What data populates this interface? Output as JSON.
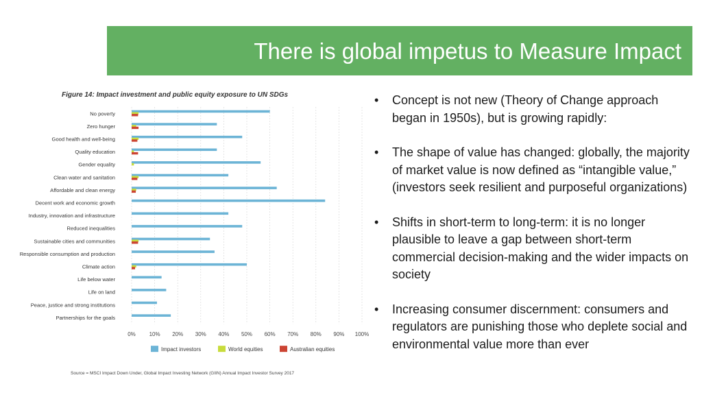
{
  "slide": {
    "title": "There is global impetus to Measure Impact",
    "bullets": [
      "Concept is not new (Theory of Change approach began in 1950s), but is growing rapidly:",
      "The shape of value has changed: globally, the majority of market value is now defined as “intangible value,” (investors seek resilient and purposeful organizations)",
      "Shifts in short-term to long-term: it is no longer plausible to leave a gap between short-term commercial decision-making and the wider impacts on society",
      "Increasing consumer discernment: consumers and regulators are punishing those who deplete social and environmental value more than ever"
    ],
    "bullet_glyph": "•"
  },
  "figure": {
    "source": "Source = MSCI Impact Down Under, Global Impact Investing Network (GIIN) Annual Impact Investor Survey 2017"
  },
  "chart_data": {
    "type": "bar",
    "orientation": "horizontal",
    "title": "Figure 14: Impact investment and public equity exposure to UN SDGs",
    "categories": [
      "No poverty",
      "Zero hunger",
      "Good health and well-being",
      "Quality education",
      "Gender equality",
      "Clean water and sanitation",
      "Affordable and clean energy",
      "Decent work and economic growth",
      "Industry, innovation and infrastructure",
      "Reduced inequalities",
      "Sustainable cities and communities",
      "Responsible consumption and production",
      "Climate action",
      "Life below water",
      "Life on land",
      "Peace, justice and strong institutions",
      "Partnerships for the goals"
    ],
    "series": [
      {
        "name": "Impact investors",
        "color": "#6cb4d6",
        "values": [
          60,
          37,
          48,
          37,
          56,
          42,
          63,
          84,
          42,
          48,
          34,
          36,
          50,
          13,
          15,
          11,
          17
        ]
      },
      {
        "name": "World equities",
        "color": "#c8dc3c",
        "values": [
          3,
          2,
          3,
          1,
          1,
          3,
          2,
          0,
          0,
          0,
          3,
          0,
          2,
          0,
          0,
          0,
          0
        ]
      },
      {
        "name": "Australian equities",
        "color": "#cc4433",
        "values": [
          2.8,
          3,
          2.5,
          2.8,
          0,
          2.5,
          1.8,
          0,
          0,
          0,
          2.8,
          0,
          1.5,
          0,
          0,
          0,
          0
        ]
      }
    ],
    "xlim": [
      0,
      100
    ],
    "ticks": [
      0,
      10,
      20,
      30,
      40,
      50,
      60,
      70,
      80,
      90,
      100
    ],
    "tick_suffix": "%",
    "grid": true,
    "legend_position": "bottom"
  }
}
